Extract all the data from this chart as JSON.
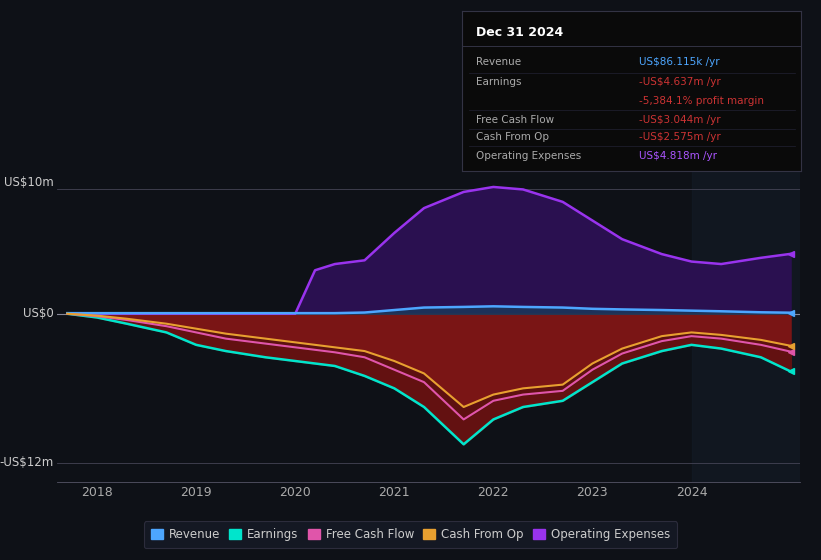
{
  "bg_color": "#0e1117",
  "chart_bg": "#0e1117",
  "ylabel_top": "US$10m",
  "ylabel_zero": "US$0",
  "ylabel_bottom": "-US$12m",
  "x_ticks": [
    2018,
    2019,
    2020,
    2021,
    2022,
    2023,
    2024
  ],
  "ylim": [
    -13.5,
    11.5
  ],
  "xlim": [
    2017.6,
    2025.1
  ],
  "info_box": {
    "title": "Dec 31 2024",
    "rows": [
      {
        "label": "Revenue",
        "value": "US$86.115k /yr",
        "value_color": "#4da6ff",
        "label_color": "#aaaaaa"
      },
      {
        "label": "Earnings",
        "value": "-US$4.637m /yr",
        "value_color": "#cc3333",
        "label_color": "#aaaaaa"
      },
      {
        "label": "",
        "value": "-5,384.1% profit margin",
        "value_color": "#cc3333",
        "label_color": "#aaaaaa"
      },
      {
        "label": "Free Cash Flow",
        "value": "-US$3.044m /yr",
        "value_color": "#cc3333",
        "label_color": "#aaaaaa"
      },
      {
        "label": "Cash From Op",
        "value": "-US$2.575m /yr",
        "value_color": "#cc3333",
        "label_color": "#aaaaaa"
      },
      {
        "label": "Operating Expenses",
        "value": "US$4.818m /yr",
        "value_color": "#aa55ff",
        "label_color": "#aaaaaa"
      }
    ]
  },
  "legend": [
    {
      "label": "Revenue",
      "color": "#4da6ff"
    },
    {
      "label": "Earnings",
      "color": "#00e5cc"
    },
    {
      "label": "Free Cash Flow",
      "color": "#e055aa"
    },
    {
      "label": "Cash From Op",
      "color": "#e8a030"
    },
    {
      "label": "Operating Expenses",
      "color": "#9933ee"
    }
  ],
  "series": {
    "x": [
      2017.7,
      2018.0,
      2018.3,
      2018.7,
      2019.0,
      2019.3,
      2019.7,
      2020.0,
      2020.2,
      2020.4,
      2020.7,
      2021.0,
      2021.3,
      2021.7,
      2022.0,
      2022.3,
      2022.7,
      2023.0,
      2023.3,
      2023.7,
      2024.0,
      2024.3,
      2024.7,
      2025.0
    ],
    "revenue": [
      0.05,
      0.05,
      0.05,
      0.05,
      0.05,
      0.05,
      0.05,
      0.05,
      0.05,
      0.05,
      0.1,
      0.3,
      0.5,
      0.55,
      0.6,
      0.55,
      0.5,
      0.4,
      0.35,
      0.3,
      0.25,
      0.2,
      0.12,
      0.086
    ],
    "earnings": [
      0.0,
      -0.3,
      -0.8,
      -1.5,
      -2.5,
      -3.0,
      -3.5,
      -3.8,
      -4.0,
      -4.2,
      -5.0,
      -6.0,
      -7.5,
      -10.5,
      -8.5,
      -7.5,
      -7.0,
      -5.5,
      -4.0,
      -3.0,
      -2.5,
      -2.8,
      -3.5,
      -4.637
    ],
    "free_cash": [
      0.0,
      -0.2,
      -0.5,
      -1.0,
      -1.5,
      -2.0,
      -2.4,
      -2.7,
      -2.9,
      -3.1,
      -3.5,
      -4.5,
      -5.5,
      -8.5,
      -7.0,
      -6.5,
      -6.2,
      -4.5,
      -3.2,
      -2.2,
      -1.8,
      -2.0,
      -2.5,
      -3.044
    ],
    "cash_from_op": [
      0.0,
      -0.15,
      -0.4,
      -0.8,
      -1.2,
      -1.6,
      -2.0,
      -2.3,
      -2.5,
      -2.7,
      -3.0,
      -3.8,
      -4.8,
      -7.5,
      -6.5,
      -6.0,
      -5.7,
      -4.0,
      -2.8,
      -1.8,
      -1.5,
      -1.7,
      -2.1,
      -2.575
    ],
    "op_expenses": [
      0.0,
      0.0,
      0.0,
      0.0,
      0.0,
      0.0,
      0.0,
      0.0,
      3.5,
      4.0,
      4.3,
      6.5,
      8.5,
      9.8,
      10.2,
      10.0,
      9.0,
      7.5,
      6.0,
      4.8,
      4.2,
      4.0,
      4.5,
      4.818
    ]
  }
}
